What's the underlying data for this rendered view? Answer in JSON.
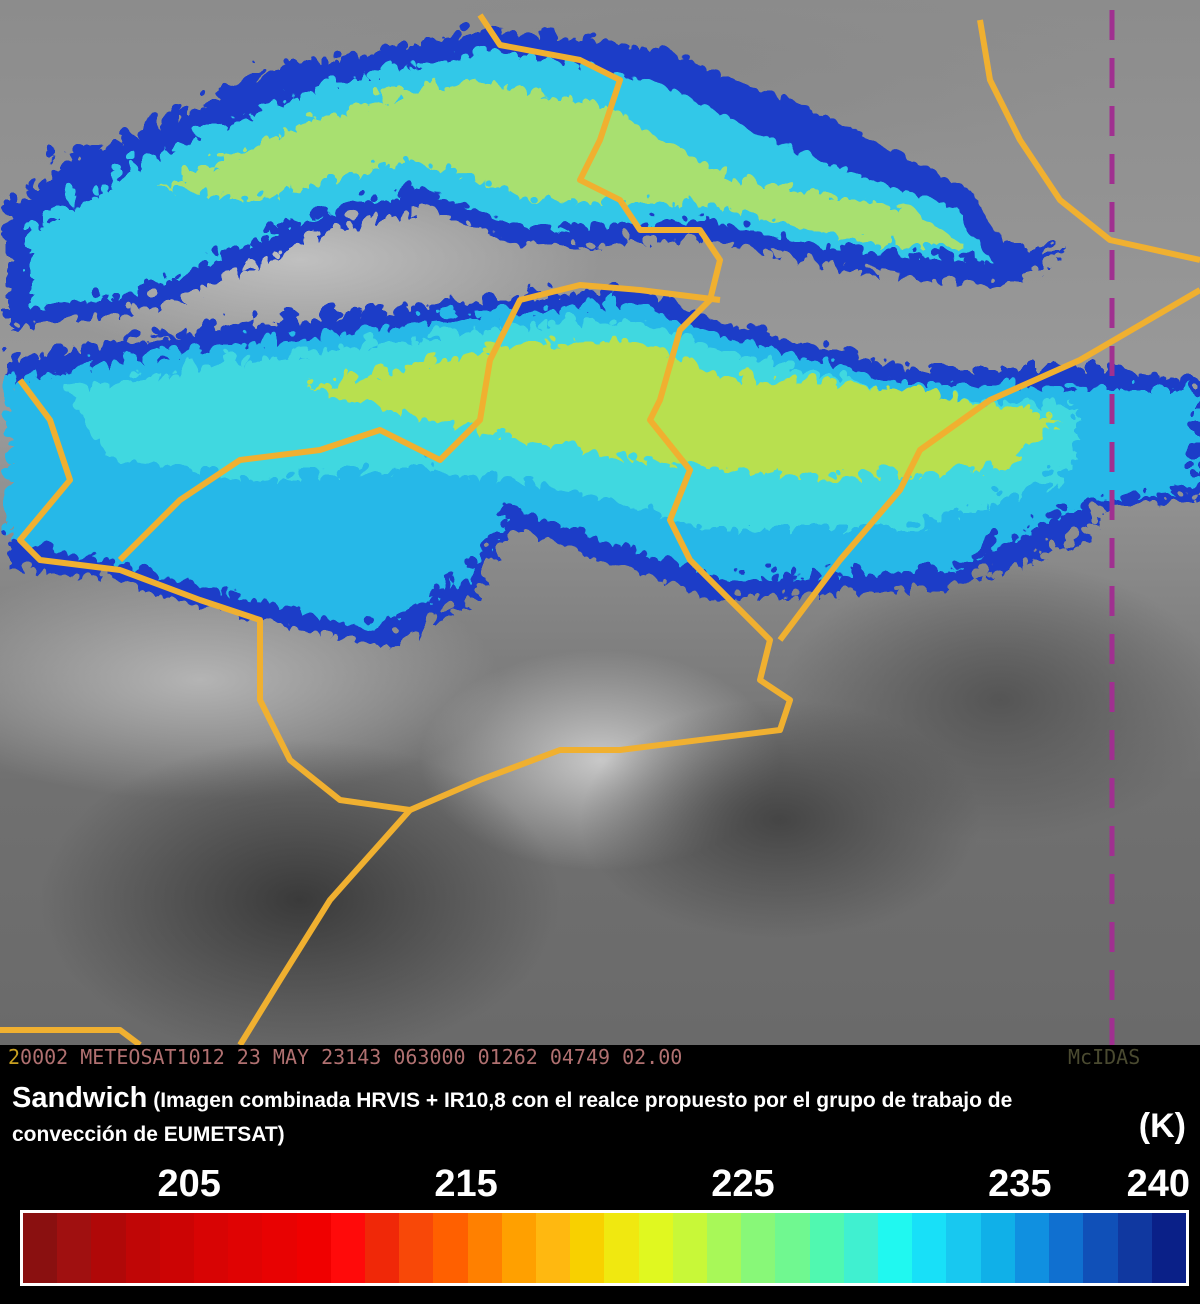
{
  "image": {
    "kind": "satellite sandwich image",
    "cloud_colors": [
      "#1e3cc8",
      "#20a0e8",
      "#30d8e8",
      "#c0e040"
    ],
    "border_color": "#f0b030",
    "meridian_color": "#a03090"
  },
  "infobar": {
    "frame_number": "2",
    "text": "0002 METEOSAT1012 23 MAY 23143 063000 01262 04749 02.00",
    "watermark": "McIDAS"
  },
  "legend": {
    "title_bold": "Sandwich",
    "title_rest": "(Imagen combinada HRVIS + IR10,8 con el realce propuesto por el grupo de trabajo de convección de EUMETSAT)",
    "unit": "(K)",
    "scale_min": 199,
    "scale_max": 241,
    "ticks": [
      "205",
      "215",
      "225",
      "235",
      "240"
    ],
    "colors": [
      "#8a1010",
      "#a01010",
      "#b00808",
      "#c00606",
      "#cc0404",
      "#d80404",
      "#e00303",
      "#e80202",
      "#f00000",
      "#ff0a0a",
      "#f02808",
      "#f84808",
      "#ff6000",
      "#ff8000",
      "#ffa000",
      "#ffb810",
      "#f8d000",
      "#f0e810",
      "#e0f820",
      "#c8f838",
      "#a8f858",
      "#88f878",
      "#70f890",
      "#50f8b0",
      "#40f0d0",
      "#20f8f0",
      "#18e0f8",
      "#18c8f0",
      "#10b0e8",
      "#1090e0",
      "#1070d0",
      "#1050b8",
      "#1038a0",
      "#0a2088"
    ]
  }
}
